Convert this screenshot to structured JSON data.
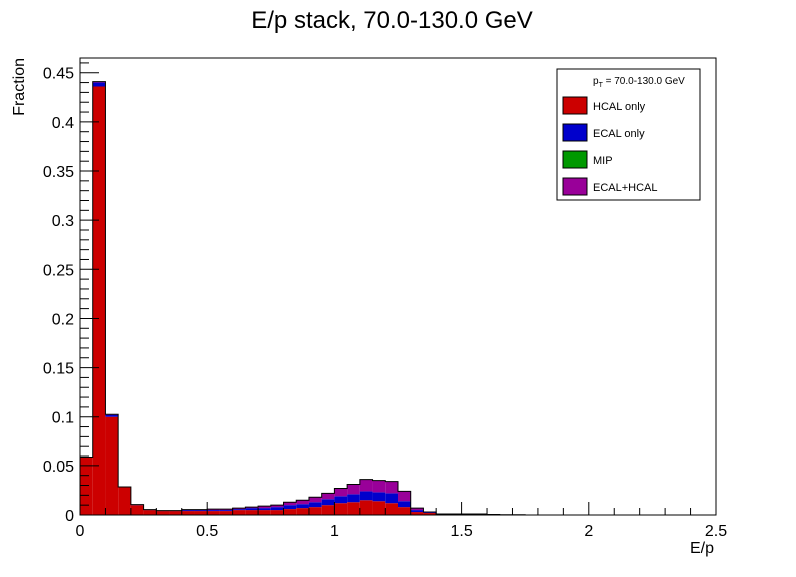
{
  "chart_data": {
    "type": "bar",
    "stacked": true,
    "title": "E/p stack, 70.0-130.0 GeV",
    "xlabel": "E/p",
    "ylabel": "Fraction",
    "xlim": [
      0,
      2.5
    ],
    "ylim": [
      0,
      0.465
    ],
    "bin_width": 0.05,
    "bin_start": 0,
    "x_ticks": [
      {
        "v": 0,
        "label": "0"
      },
      {
        "v": 0.5,
        "label": "0.5"
      },
      {
        "v": 1,
        "label": "1"
      },
      {
        "v": 1.5,
        "label": "1.5"
      },
      {
        "v": 2,
        "label": "2"
      },
      {
        "v": 2.5,
        "label": "2.5"
      }
    ],
    "y_ticks": [
      {
        "v": 0,
        "label": "0"
      },
      {
        "v": 0.05,
        "label": "0.05"
      },
      {
        "v": 0.1,
        "label": "0.1"
      },
      {
        "v": 0.15,
        "label": "0.15"
      },
      {
        "v": 0.2,
        "label": "0.2"
      },
      {
        "v": 0.25,
        "label": "0.25"
      },
      {
        "v": 0.3,
        "label": "0.3"
      },
      {
        "v": 0.35,
        "label": "0.35"
      },
      {
        "v": 0.4,
        "label": "0.4"
      },
      {
        "v": 0.45,
        "label": "0.45"
      }
    ],
    "legend": {
      "placement": "top-right",
      "header_main": "p",
      "header_sub": "T",
      "header_rest": " = 70.0-130.0 GeV"
    },
    "series": [
      {
        "name": "HCAL only",
        "color": "#cc0000",
        "values": [
          0.058,
          0.436,
          0.1,
          0.028,
          0.01,
          0.005,
          0.004,
          0.004,
          0.004,
          0.004,
          0.004,
          0.004,
          0.005,
          0.005,
          0.005,
          0.005,
          0.006,
          0.007,
          0.008,
          0.01,
          0.012,
          0.013,
          0.015,
          0.014,
          0.012,
          0.008,
          0.003,
          0.002,
          0.001,
          0.001,
          0.001,
          0.001,
          0.0005,
          0.0003,
          0.0002,
          0,
          0,
          0,
          0,
          0,
          0,
          0,
          0,
          0,
          0,
          0,
          0,
          0,
          0,
          0
        ]
      },
      {
        "name": "ECAL only",
        "color": "#0000cc",
        "values": [
          0.0005,
          0.004,
          0.002,
          0.0005,
          0.0005,
          0.0005,
          0.0005,
          0.0005,
          0.001,
          0.001,
          0.001,
          0.001,
          0.001,
          0.002,
          0.002,
          0.003,
          0.004,
          0.004,
          0.005,
          0.006,
          0.007,
          0.008,
          0.009,
          0.009,
          0.01,
          0.006,
          0.002,
          0.0005,
          0,
          0,
          0,
          0,
          0,
          0,
          0,
          0,
          0,
          0,
          0,
          0,
          0,
          0,
          0,
          0,
          0,
          0,
          0,
          0,
          0,
          0
        ]
      },
      {
        "name": "MIP",
        "color": "#009900",
        "values": [
          0,
          0,
          0,
          0,
          0,
          0,
          0,
          0,
          0,
          0,
          0,
          0,
          0,
          0,
          0,
          0,
          0,
          0,
          0,
          0,
          0,
          0,
          0,
          0,
          0,
          0,
          0,
          0,
          0,
          0,
          0,
          0,
          0,
          0,
          0,
          0,
          0,
          0,
          0,
          0,
          0,
          0,
          0,
          0,
          0,
          0,
          0,
          0,
          0,
          0
        ]
      },
      {
        "name": "ECAL+HCAL",
        "color": "#990099",
        "values": [
          0,
          0.001,
          0.0005,
          0,
          0,
          0,
          0,
          0,
          0.0005,
          0.0005,
          0.001,
          0.001,
          0.001,
          0.001,
          0.002,
          0.002,
          0.003,
          0.004,
          0.005,
          0.006,
          0.008,
          0.01,
          0.012,
          0.012,
          0.012,
          0.01,
          0.002,
          0.0005,
          0,
          0,
          0,
          0,
          0,
          0,
          0,
          0,
          0,
          0,
          0,
          0,
          0,
          0,
          0,
          0,
          0,
          0,
          0,
          0,
          0,
          0
        ]
      }
    ]
  }
}
